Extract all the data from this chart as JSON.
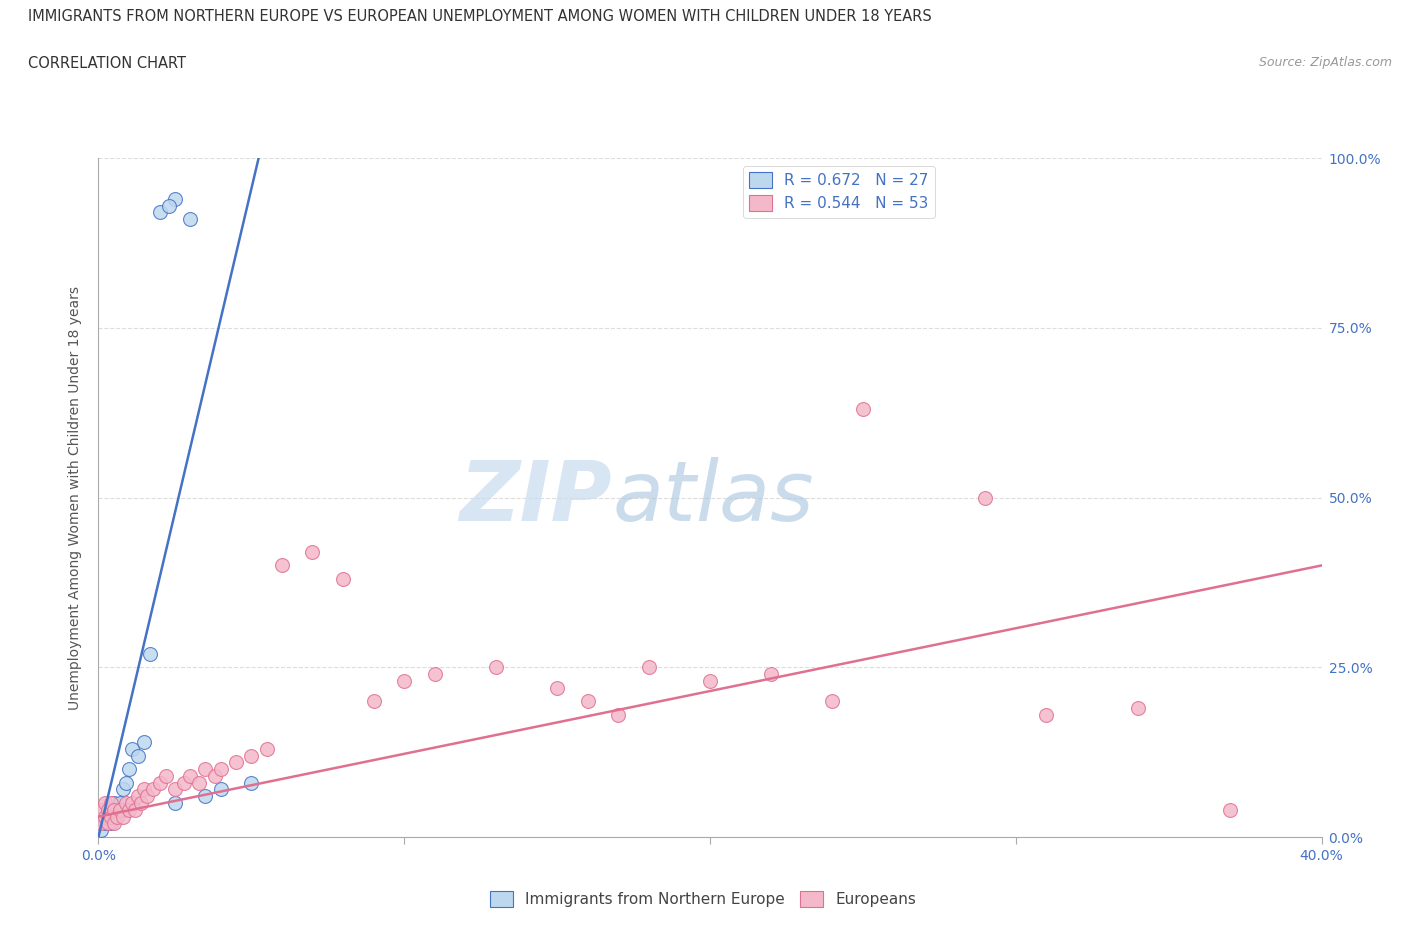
{
  "title_line1": "IMMIGRANTS FROM NORTHERN EUROPE VS EUROPEAN UNEMPLOYMENT AMONG WOMEN WITH CHILDREN UNDER 18 YEARS",
  "title_line2": "CORRELATION CHART",
  "source": "Source: ZipAtlas.com",
  "ylabel": "Unemployment Among Women with Children Under 18 years",
  "xlim": [
    0.0,
    0.4
  ],
  "ylim": [
    0.0,
    1.0
  ],
  "xtick_vals": [
    0.0,
    0.1,
    0.2,
    0.3,
    0.4
  ],
  "xtick_labels": [
    "0.0%",
    "",
    "",
    "",
    "40.0%"
  ],
  "ytick_vals": [
    0.0,
    0.25,
    0.5,
    0.75,
    1.0
  ],
  "ytick_labels_right": [
    "0.0%",
    "25.0%",
    "50.0%",
    "75.0%",
    "100.0%"
  ],
  "blue_fill": "#BDD7EE",
  "blue_edge": "#4472C4",
  "pink_fill": "#F4B8CB",
  "pink_edge": "#E07090",
  "pink_line_color": "#E07090",
  "blue_line_color": "#4472C4",
  "R_blue": 0.672,
  "N_blue": 27,
  "R_pink": 0.544,
  "N_pink": 53,
  "legend_label_blue": "Immigrants from Northern Europe",
  "legend_label_pink": "Europeans",
  "tick_color": "#4472C4",
  "grid_color": "#DDDDDD",
  "blue_line_x": [
    0.0,
    0.055
  ],
  "blue_line_y": [
    0.0,
    1.05
  ],
  "pink_line_x": [
    0.0,
    0.4
  ],
  "pink_line_y": [
    0.03,
    0.4
  ],
  "blue_x": [
    0.001,
    0.002,
    0.002,
    0.003,
    0.003,
    0.004,
    0.004,
    0.005,
    0.005,
    0.006,
    0.007,
    0.008,
    0.008,
    0.009,
    0.01,
    0.011,
    0.013,
    0.015,
    0.017,
    0.02,
    0.025,
    0.03,
    0.023,
    0.025,
    0.035,
    0.04,
    0.05
  ],
  "blue_y": [
    0.01,
    0.02,
    0.03,
    0.02,
    0.04,
    0.02,
    0.03,
    0.03,
    0.05,
    0.04,
    0.05,
    0.04,
    0.07,
    0.08,
    0.1,
    0.13,
    0.12,
    0.14,
    0.27,
    0.92,
    0.94,
    0.91,
    0.93,
    0.05,
    0.06,
    0.07,
    0.08
  ],
  "pink_x": [
    0.001,
    0.001,
    0.002,
    0.002,
    0.003,
    0.003,
    0.004,
    0.004,
    0.005,
    0.005,
    0.006,
    0.007,
    0.008,
    0.009,
    0.01,
    0.011,
    0.012,
    0.013,
    0.014,
    0.015,
    0.016,
    0.018,
    0.02,
    0.022,
    0.025,
    0.028,
    0.03,
    0.033,
    0.035,
    0.038,
    0.04,
    0.045,
    0.05,
    0.055,
    0.06,
    0.07,
    0.08,
    0.09,
    0.1,
    0.11,
    0.13,
    0.15,
    0.16,
    0.17,
    0.18,
    0.2,
    0.22,
    0.24,
    0.25,
    0.29,
    0.31,
    0.34,
    0.37
  ],
  "pink_y": [
    0.02,
    0.04,
    0.03,
    0.05,
    0.02,
    0.04,
    0.03,
    0.05,
    0.02,
    0.04,
    0.03,
    0.04,
    0.03,
    0.05,
    0.04,
    0.05,
    0.04,
    0.06,
    0.05,
    0.07,
    0.06,
    0.07,
    0.08,
    0.09,
    0.07,
    0.08,
    0.09,
    0.08,
    0.1,
    0.09,
    0.1,
    0.11,
    0.12,
    0.13,
    0.4,
    0.42,
    0.38,
    0.2,
    0.23,
    0.24,
    0.25,
    0.22,
    0.2,
    0.18,
    0.25,
    0.23,
    0.24,
    0.2,
    0.63,
    0.5,
    0.18,
    0.19,
    0.04
  ]
}
